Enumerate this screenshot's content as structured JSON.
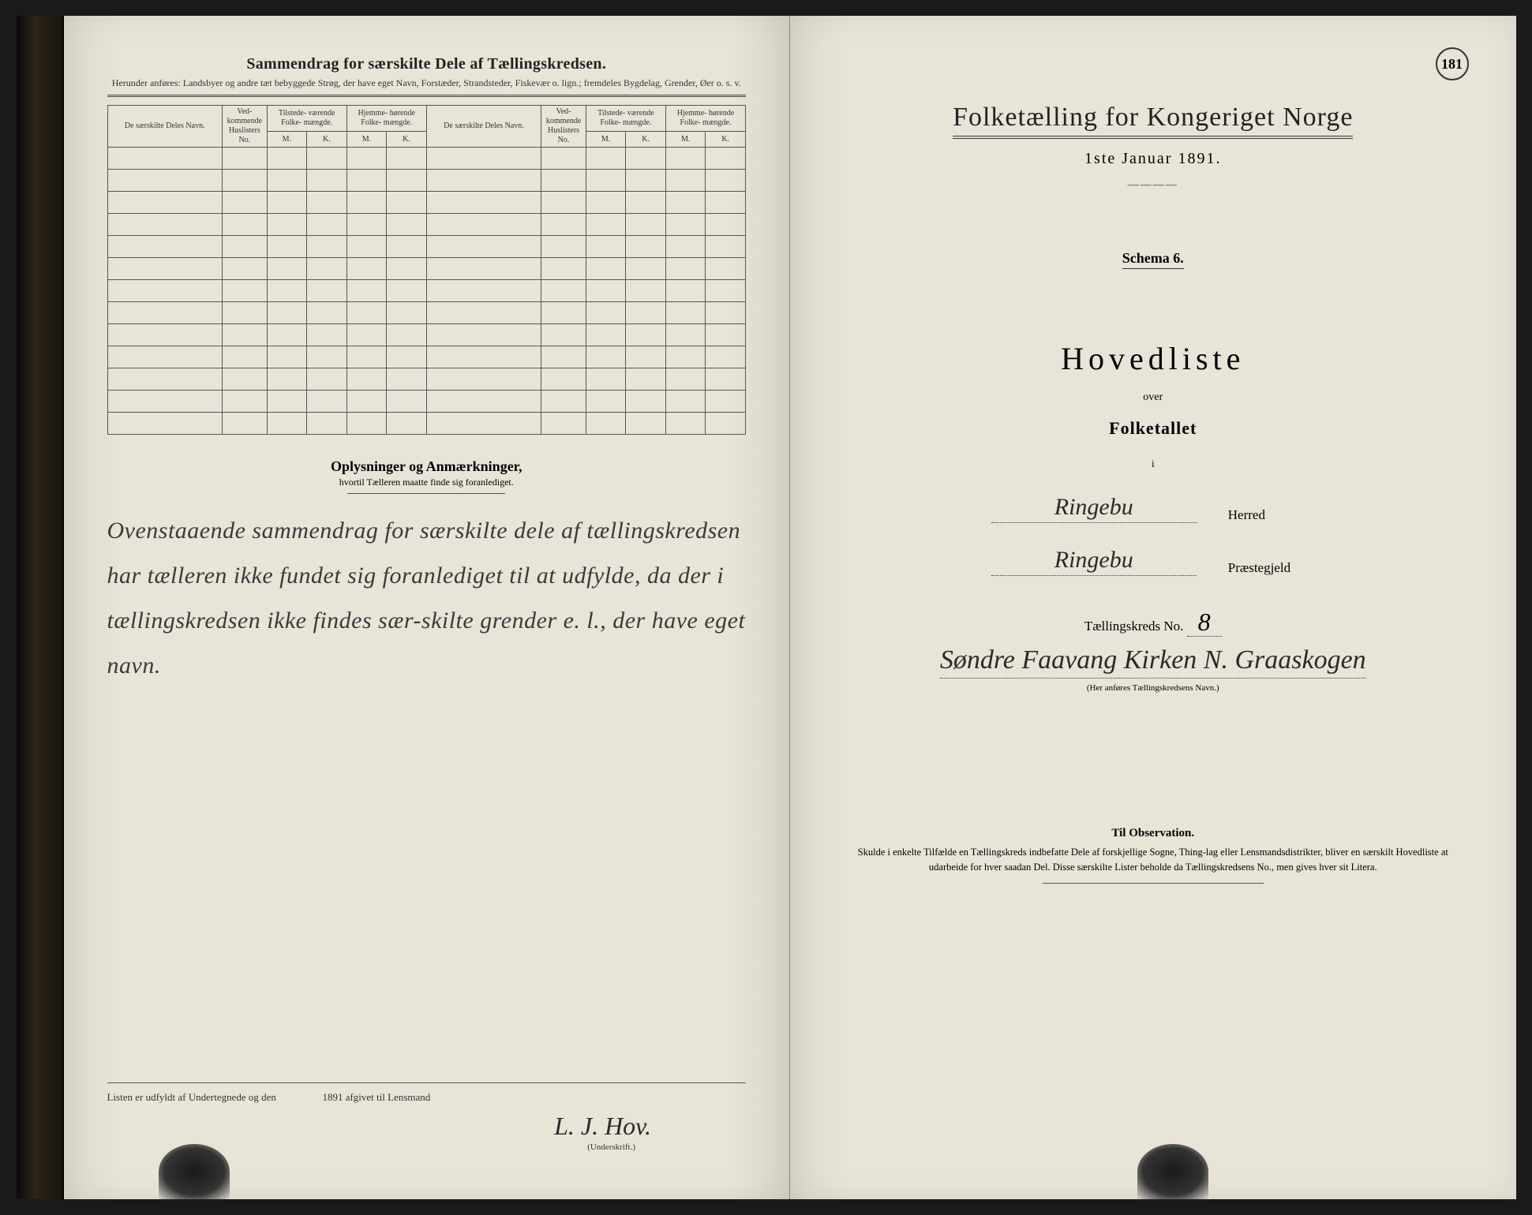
{
  "page_number": "181",
  "left": {
    "title": "Sammendrag for særskilte Dele af Tællingskredsen.",
    "subtitle": "Herunder anføres: Landsbyer og andre tæt bebyggede Strøg, der have eget Navn, Forstæder, Strandsteder, Fiskevær o. lign.; fremdeles Bygdelag, Grender, Øer o. s. v.",
    "columns": {
      "name": "De særskilte Deles Navn.",
      "no": "Ved-\nkommende\nHuslisters\nNo.",
      "tilstede": "Tilstede-\nværende\nFolke-\nmængde.",
      "hjemme": "Hjemme-\nhørende\nFolke-\nmængde.",
      "m": "M.",
      "k": "K."
    },
    "remarks_title": "Oplysninger og Anmærkninger,",
    "remarks_sub": "hvortil Tælleren maatte finde sig foranlediget.",
    "handwriting": "Ovenstaaende sammendrag for særskilte dele af tællingskredsen har tælleren ikke fundet sig foranlediget til at udfylde, da der i tællingskredsen ikke findes sær-skilte grender e. l., der have eget navn.",
    "footer_text_1": "Listen er udfyldt af Undertegnede og den",
    "footer_text_2": "1891 afgivet til Lensmand",
    "signature": "L. J. Hov.",
    "signature_label": "(Underskrift.)"
  },
  "right": {
    "title": "Folketælling for Kongeriget Norge",
    "date": "1ste Januar 1891.",
    "schema": "Schema 6.",
    "hovedliste": "Hovedliste",
    "over": "over",
    "folketallet": "Folketallet",
    "i": "i",
    "herred_value": "Ringebu",
    "herred_label": "Herred",
    "praestegjeld_value": "Ringebu",
    "praestegjeld_label": "Præstegjeld",
    "kreds_label": "Tællingskreds No.",
    "kreds_no": "8",
    "kreds_name": "Søndre Faavang\nKirken N. Graaskogen",
    "kreds_caption": "(Her anføres Tællingskredsens Navn.)",
    "obs_title": "Til Observation.",
    "obs_text": "Skulde i enkelte Tilfælde en Tællingskreds indbefatte Dele af forskjellige Sogne, Thing-lag eller Lensmandsdistrikter, bliver en særskilt Hovedliste at udarbeide for hver saadan Del. Disse særskilte Lister beholde da Tællingskredsens No., men gives hver sit Litera."
  },
  "style": {
    "paper_color": "#e8e4d8",
    "ink_color": "#2a2a2a",
    "rule_color": "#555555"
  }
}
